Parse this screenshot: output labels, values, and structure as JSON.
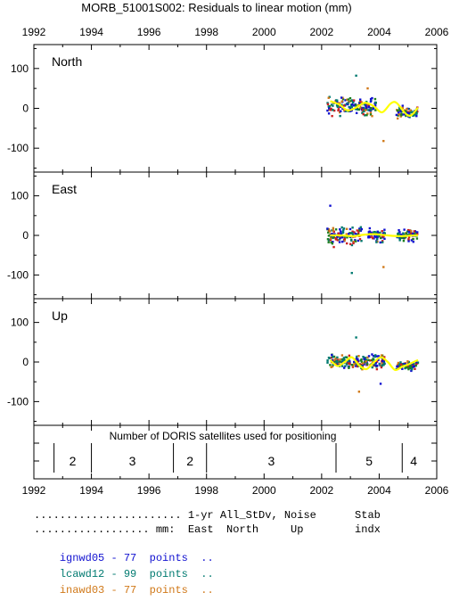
{
  "title": "MORB_51001S002: Residuals to linear motion (mm)",
  "x_ticks": [
    "1992",
    "1994",
    "1996",
    "1998",
    "2000",
    "2002",
    "2004",
    "2006"
  ],
  "colors": {
    "series_1": "#1010d0",
    "series_2": "#007a70",
    "series_3": "#d07818",
    "fit": "#ffff00",
    "axis": "#000000",
    "extra_dot_1": "#cc2020",
    "extra_dot_2": "#208020"
  },
  "chart_data": [
    {
      "type": "scatter",
      "panel_label": "North",
      "xlim": [
        1992,
        2006
      ],
      "ylim": [
        -160,
        160
      ],
      "y_ticks": [
        "100",
        "0",
        "-100"
      ],
      "y_tick_values": [
        100,
        0,
        -100
      ],
      "fit_curve": [
        [
          2002.3,
          18
        ],
        [
          2002.6,
          10
        ],
        [
          2002.9,
          -5
        ],
        [
          2003.2,
          2
        ],
        [
          2003.5,
          14
        ],
        [
          2003.8,
          6
        ],
        [
          2004.1,
          -10
        ],
        [
          2004.4,
          12
        ],
        [
          2004.6,
          14
        ],
        [
          2004.9,
          -12
        ],
        [
          2005.1,
          -18
        ],
        [
          2005.35,
          2
        ]
      ],
      "clusters": [
        {
          "x": [
            2002.2,
            2003.9
          ],
          "y": [
            -45,
            85
          ],
          "center": 5
        },
        {
          "x": [
            2004.6,
            2005.35
          ],
          "y": [
            -50,
            25
          ],
          "center": -10
        }
      ],
      "outliers": [
        [
          2003.2,
          82
        ],
        [
          2004.15,
          -82
        ],
        [
          2003.6,
          50
        ]
      ]
    },
    {
      "type": "scatter",
      "panel_label": "East",
      "xlim": [
        1992,
        2006
      ],
      "ylim": [
        -160,
        160
      ],
      "y_ticks": [
        "100",
        "0",
        "-100"
      ],
      "y_tick_values": [
        100,
        0,
        -100
      ],
      "fit_curve": [
        [
          2002.3,
          0
        ],
        [
          2002.7,
          0
        ],
        [
          2003.1,
          -2
        ],
        [
          2003.5,
          2
        ],
        [
          2003.9,
          3
        ],
        [
          2004.3,
          0
        ],
        [
          2004.7,
          -2
        ],
        [
          2005.0,
          -1
        ],
        [
          2005.35,
          0
        ]
      ],
      "clusters": [
        {
          "x": [
            2002.2,
            2003.4
          ],
          "y": [
            -60,
            70
          ],
          "center": 0
        },
        {
          "x": [
            2003.6,
            2004.2
          ],
          "y": [
            -50,
            50
          ],
          "center": 0
        },
        {
          "x": [
            2004.6,
            2005.35
          ],
          "y": [
            -35,
            45
          ],
          "center": 0
        }
      ],
      "outliers": [
        [
          2003.05,
          -95
        ],
        [
          2004.15,
          -80
        ],
        [
          2002.3,
          75
        ]
      ]
    },
    {
      "type": "scatter",
      "panel_label": "Up",
      "xlim": [
        1992,
        2006
      ],
      "ylim": [
        -160,
        160
      ],
      "y_ticks": [
        "100",
        "0",
        "-100"
      ],
      "y_tick_values": [
        100,
        0,
        -100
      ],
      "fit_curve": [
        [
          2002.3,
          5
        ],
        [
          2002.55,
          -10
        ],
        [
          2002.8,
          0
        ],
        [
          2003.05,
          12
        ],
        [
          2003.3,
          -8
        ],
        [
          2003.55,
          -18
        ],
        [
          2003.8,
          -2
        ],
        [
          2004.05,
          12
        ],
        [
          2004.3,
          0
        ],
        [
          2004.55,
          -20
        ],
        [
          2004.8,
          -12
        ],
        [
          2005.05,
          -5
        ],
        [
          2005.35,
          5
        ]
      ],
      "clusters": [
        {
          "x": [
            2002.2,
            2004.2
          ],
          "y": [
            -40,
            60
          ],
          "center": 0
        },
        {
          "x": [
            2004.6,
            2005.35
          ],
          "y": [
            -35,
            20
          ],
          "center": -10
        }
      ],
      "outliers": [
        [
          2003.3,
          -75
        ],
        [
          2003.2,
          62
        ],
        [
          2004.05,
          -55
        ]
      ]
    },
    {
      "type": "table",
      "caption": "Number of DORIS satellites used for positioning",
      "xlim": [
        1992,
        2006
      ],
      "boundaries": [
        1992.7,
        1994.0,
        1996.85,
        1998.0,
        2002.5,
        2004.8
      ],
      "segments": [
        {
          "from": 1992.7,
          "to": 1994.0,
          "count": "2"
        },
        {
          "from": 1994.0,
          "to": 1996.85,
          "count": "3"
        },
        {
          "from": 1996.85,
          "to": 1998.0,
          "count": "2"
        },
        {
          "from": 1998.0,
          "to": 2002.5,
          "count": "3"
        },
        {
          "from": 2002.5,
          "to": 2004.8,
          "count": "5"
        },
        {
          "from": 2004.8,
          "to": 2005.6,
          "count": "4"
        }
      ]
    }
  ],
  "legend": {
    "header_line1": "....................... 1-yr All_StDv, Noise      Stab",
    "header_line2": ".................. mm:  East  North     Up        indx",
    "rows": [
      {
        "name": "ignwd05",
        "sep": "-",
        "count": "77",
        "unit": "points",
        "dots": "..",
        "color": "#1010d0"
      },
      {
        "name": "lcawd12",
        "sep": "-",
        "count": "99",
        "unit": "points",
        "dots": "..",
        "color": "#007a70"
      },
      {
        "name": "inawd03",
        "sep": "-",
        "count": "77",
        "unit": "points",
        "dots": "..",
        "color": "#d07818"
      }
    ]
  }
}
